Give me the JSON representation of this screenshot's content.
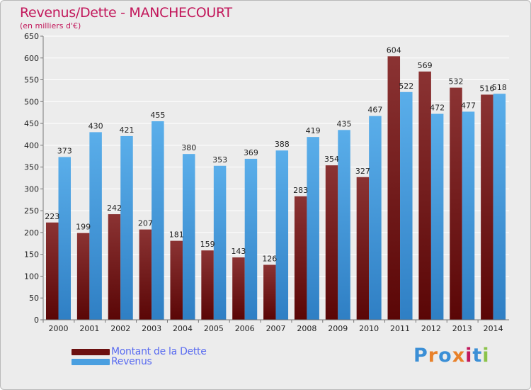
{
  "title": "Revenus/Dette - MANCHECOURT",
  "subtitle": "(en milliers d'€)",
  "legend": [
    {
      "label": "Montant de la Dette",
      "color": "#6b1010"
    },
    {
      "label": "Revenus",
      "color": "#4a9fe0"
    }
  ],
  "logo": {
    "text": "Proxiti",
    "letters": [
      "P",
      "r",
      "o",
      "x",
      "i",
      "t",
      "i"
    ],
    "colors": [
      "#3b8fd6",
      "#e8812a",
      "#3b8fd6",
      "#e8812a",
      "#c2185b",
      "#3b8fd6",
      "#8bc34a"
    ]
  },
  "colors": {
    "dette_top": "#8b3333",
    "dette_bottom": "#5a0606",
    "revenus_top": "#5aaeea",
    "revenus_bottom": "#2f7fc4",
    "grid": "#ffffff",
    "axis_text": "#222222"
  },
  "chart_data": {
    "type": "bar",
    "categories": [
      "2000",
      "2001",
      "2002",
      "2003",
      "2004",
      "2005",
      "2006",
      "2007",
      "2008",
      "2009",
      "2010",
      "2011",
      "2012",
      "2013",
      "2014"
    ],
    "series": [
      {
        "name": "Montant de la Dette",
        "values": [
          223,
          199,
          242,
          207,
          181,
          159,
          143,
          126,
          283,
          354,
          327,
          604,
          569,
          532,
          516
        ]
      },
      {
        "name": "Revenus",
        "values": [
          373,
          430,
          421,
          455,
          380,
          353,
          369,
          388,
          419,
          435,
          467,
          522,
          472,
          477,
          518
        ]
      }
    ],
    "ylim": [
      0,
      650
    ],
    "yticks": [
      0,
      50,
      100,
      150,
      200,
      250,
      300,
      350,
      400,
      450,
      500,
      550,
      600,
      650
    ],
    "grid": true,
    "legend_position": "bottom-left"
  }
}
